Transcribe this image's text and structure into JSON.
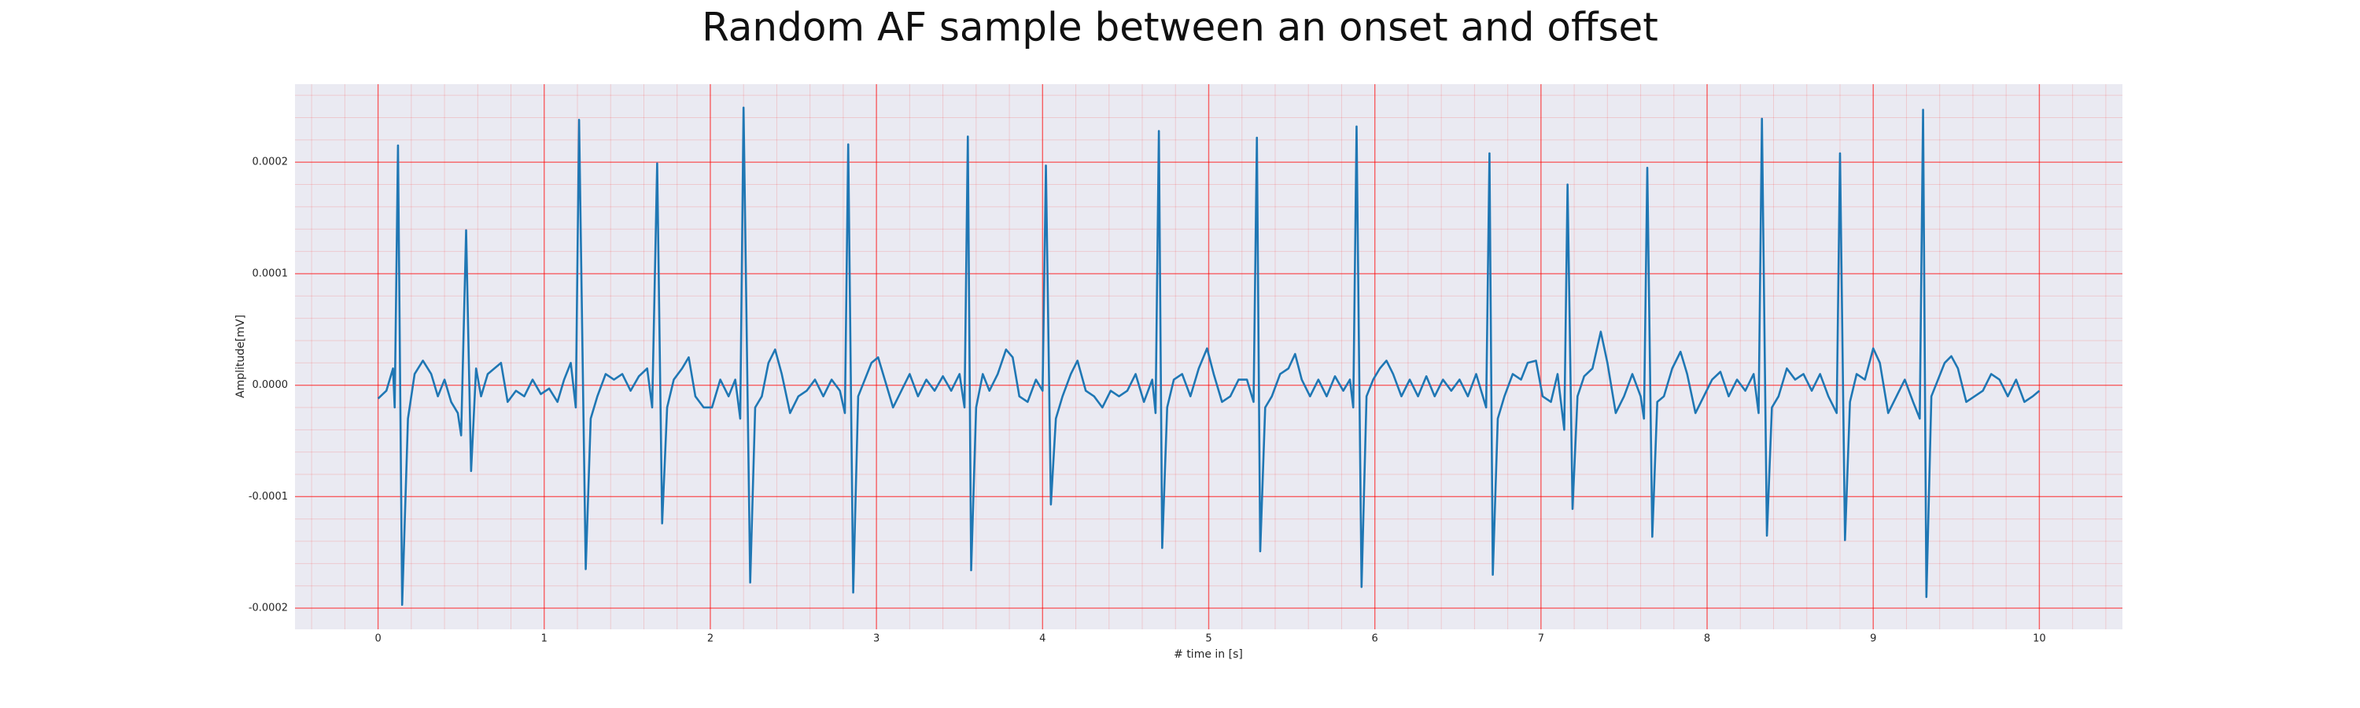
{
  "chart_data": {
    "type": "line",
    "title": "Random AF sample between an onset and offset",
    "xlabel": "# time in [s]",
    "ylabel": "Amplitude[mV]",
    "color": "#1f77b4",
    "grid": true,
    "xlim": [
      -0.5,
      10.5
    ],
    "ylim": [
      -0.000219,
      0.00027
    ],
    "xticks": [
      0,
      1,
      2,
      3,
      4,
      5,
      6,
      7,
      8,
      9,
      10
    ],
    "yticks": [
      -0.0002,
      -0.0001,
      {
        "value": 0,
        "label": "0.0000"
      },
      0.0001,
      0.0002
    ],
    "minor_xticks": [
      -0.4,
      -0.2,
      0.2,
      0.4,
      0.6,
      0.8,
      1.2,
      1.4,
      1.6,
      1.8,
      2.2,
      2.4,
      2.6,
      2.8,
      3.2,
      3.4,
      3.6,
      3.8,
      4.2,
      4.4,
      4.6,
      4.8,
      5.2,
      5.4,
      5.6,
      5.8,
      6.2,
      6.4,
      6.6,
      6.8,
      7.2,
      7.4,
      7.6,
      7.8,
      8.2,
      8.4,
      8.6,
      8.8,
      9.2,
      9.4,
      9.6,
      9.8,
      10.2,
      10.4
    ],
    "minor_yticks": [
      -0.00018,
      -0.00016,
      -0.00014,
      -0.00012,
      -8e-05,
      -6e-05,
      -4e-05,
      -2e-05,
      2e-05,
      4e-05,
      6e-05,
      8e-05,
      0.00012,
      0.00014,
      0.00016,
      0.00018,
      0.00022,
      0.00024,
      0.00026
    ],
    "x": [
      0,
      0.05,
      0.09,
      0.1,
      0.12,
      0.145,
      0.18,
      0.22,
      0.27,
      0.32,
      0.36,
      0.4,
      0.44,
      0.48,
      0.5,
      0.53,
      0.56,
      0.59,
      0.62,
      0.66,
      0.7,
      0.74,
      0.78,
      0.83,
      0.88,
      0.93,
      0.98,
      1.03,
      1.08,
      1.12,
      1.16,
      1.19,
      1.21,
      1.25,
      1.28,
      1.32,
      1.37,
      1.42,
      1.47,
      1.52,
      1.57,
      1.62,
      1.65,
      1.68,
      1.71,
      1.74,
      1.78,
      1.83,
      1.87,
      1.91,
      1.96,
      2.01,
      2.06,
      2.11,
      2.15,
      2.18,
      2.2,
      2.24,
      2.27,
      2.31,
      2.35,
      2.39,
      2.43,
      2.48,
      2.53,
      2.58,
      2.63,
      2.68,
      2.73,
      2.78,
      2.81,
      2.83,
      2.86,
      2.89,
      2.93,
      2.97,
      3.01,
      3.05,
      3.1,
      3.15,
      3.2,
      3.25,
      3.3,
      3.35,
      3.4,
      3.45,
      3.5,
      3.53,
      3.55,
      3.57,
      3.6,
      3.64,
      3.68,
      3.73,
      3.78,
      3.82,
      3.86,
      3.91,
      3.96,
      4,
      4.02,
      4.05,
      4.08,
      4.12,
      4.17,
      4.21,
      4.26,
      4.31,
      4.36,
      4.41,
      4.46,
      4.51,
      4.56,
      4.61,
      4.66,
      4.68,
      4.7,
      4.72,
      4.75,
      4.79,
      4.84,
      4.89,
      4.94,
      4.99,
      5.03,
      5.08,
      5.13,
      5.18,
      5.23,
      5.27,
      5.29,
      5.31,
      5.34,
      5.38,
      5.43,
      5.48,
      5.52,
      5.56,
      5.61,
      5.66,
      5.71,
      5.76,
      5.81,
      5.85,
      5.87,
      5.89,
      5.92,
      5.95,
      5.99,
      6.03,
      6.07,
      6.11,
      6.16,
      6.21,
      6.26,
      6.31,
      6.36,
      6.41,
      6.46,
      6.51,
      6.56,
      6.61,
      6.67,
      6.69,
      6.71,
      6.74,
      6.78,
      6.83,
      6.88,
      6.92,
      6.97,
      7.01,
      7.06,
      7.1,
      7.14,
      7.16,
      7.19,
      7.22,
      7.26,
      7.31,
      7.36,
      7.4,
      7.45,
      7.5,
      7.55,
      7.6,
      7.62,
      7.64,
      7.67,
      7.7,
      7.74,
      7.79,
      7.84,
      7.88,
      7.93,
      7.98,
      8.03,
      8.08,
      8.13,
      8.18,
      8.23,
      8.28,
      8.31,
      8.33,
      8.36,
      8.39,
      8.43,
      8.48,
      8.53,
      8.58,
      8.63,
      8.68,
      8.73,
      8.78,
      8.8,
      8.83,
      8.86,
      8.9,
      8.95,
      9,
      9.04,
      9.09,
      9.14,
      9.19,
      9.24,
      9.28,
      9.3,
      9.32,
      9.35,
      9.39,
      9.43,
      9.47,
      9.51,
      9.56,
      9.61,
      9.66,
      9.71,
      9.76,
      9.81,
      9.86,
      9.91,
      9.96,
      10
    ],
    "values": [
      -1.2e-05,
      -5e-06,
      1.5e-05,
      -2e-05,
      0.000215,
      -0.000197,
      -3e-05,
      1e-05,
      2.2e-05,
      1e-05,
      -1e-05,
      5e-06,
      -1.5e-05,
      -2.5e-05,
      -4.5e-05,
      0.000139,
      -7.7e-05,
      1.5e-05,
      -1e-05,
      1e-05,
      1.5e-05,
      2e-05,
      -1.5e-05,
      -5e-06,
      -1e-05,
      5e-06,
      -8e-06,
      -3e-06,
      -1.5e-05,
      5e-06,
      2e-05,
      -2e-05,
      0.000238,
      -0.000165,
      -3e-05,
      -1e-05,
      1e-05,
      5e-06,
      1e-05,
      -5e-06,
      8e-06,
      1.5e-05,
      -2e-05,
      0.000199,
      -0.000124,
      -2e-05,
      5e-06,
      1.5e-05,
      2.5e-05,
      -1e-05,
      -2e-05,
      -2e-05,
      5e-06,
      -1e-05,
      5e-06,
      -3e-05,
      0.000249,
      -0.000177,
      -2e-05,
      -1e-05,
      2e-05,
      3.2e-05,
      1e-05,
      -2.5e-05,
      -1e-05,
      -5e-06,
      5e-06,
      -1e-05,
      5e-06,
      -5e-06,
      -2.5e-05,
      0.000216,
      -0.000186,
      -1e-05,
      5e-06,
      2e-05,
      2.5e-05,
      5e-06,
      -2e-05,
      -5e-06,
      1e-05,
      -1e-05,
      5e-06,
      -5e-06,
      8e-06,
      -5e-06,
      1e-05,
      -2e-05,
      0.000223,
      -0.000166,
      -2e-05,
      1e-05,
      -5e-06,
      1e-05,
      3.2e-05,
      2.5e-05,
      -1e-05,
      -1.5e-05,
      5e-06,
      -5e-06,
      0.000197,
      -0.000107,
      -3e-05,
      -1e-05,
      1e-05,
      2.2e-05,
      -5e-06,
      -1e-05,
      -2e-05,
      -5e-06,
      -1e-05,
      -5e-06,
      1e-05,
      -1.5e-05,
      5e-06,
      -2.5e-05,
      0.000228,
      -0.000146,
      -2e-05,
      5e-06,
      1e-05,
      -1e-05,
      1.5e-05,
      3.3e-05,
      1e-05,
      -1.5e-05,
      -1e-05,
      5e-06,
      5e-06,
      -1.5e-05,
      0.000222,
      -0.000149,
      -2e-05,
      -1e-05,
      1e-05,
      1.5e-05,
      2.8e-05,
      5e-06,
      -1e-05,
      5e-06,
      -1e-05,
      8e-06,
      -5e-06,
      5e-06,
      -2e-05,
      0.000232,
      -0.000181,
      -1e-05,
      5e-06,
      1.5e-05,
      2.2e-05,
      1e-05,
      -1e-05,
      5e-06,
      -1e-05,
      8e-06,
      -1e-05,
      5e-06,
      -5e-06,
      5e-06,
      -1e-05,
      1e-05,
      -2e-05,
      0.000208,
      -0.00017,
      -3e-05,
      -1e-05,
      1e-05,
      5e-06,
      2e-05,
      2.2e-05,
      -1e-05,
      -1.5e-05,
      1e-05,
      -4e-05,
      0.00018,
      -0.000111,
      -1e-05,
      8e-06,
      1.5e-05,
      4.8e-05,
      2e-05,
      -2.5e-05,
      -1e-05,
      1e-05,
      -1e-05,
      -3e-05,
      0.000195,
      -0.000136,
      -1.5e-05,
      -1e-05,
      1.5e-05,
      3e-05,
      1e-05,
      -2.5e-05,
      -1e-05,
      5e-06,
      1.2e-05,
      -1e-05,
      5e-06,
      -5e-06,
      1e-05,
      -2.5e-05,
      0.000239,
      -0.000135,
      -2e-05,
      -1e-05,
      1.5e-05,
      5e-06,
      1e-05,
      -5e-06,
      1e-05,
      -1e-05,
      -2.5e-05,
      0.000208,
      -0.000139,
      -1.5e-05,
      1e-05,
      5e-06,
      3.3e-05,
      2e-05,
      -2.5e-05,
      -1e-05,
      5e-06,
      -1.5e-05,
      -3e-05,
      0.000247,
      -0.00019,
      -1e-05,
      5e-06,
      2e-05,
      2.6e-05,
      1.5e-05,
      -1.5e-05,
      -1e-05,
      -5e-06,
      1e-05,
      5e-06,
      -1e-05,
      5e-06,
      -1.5e-05,
      -1e-05,
      -5e-06
    ]
  }
}
